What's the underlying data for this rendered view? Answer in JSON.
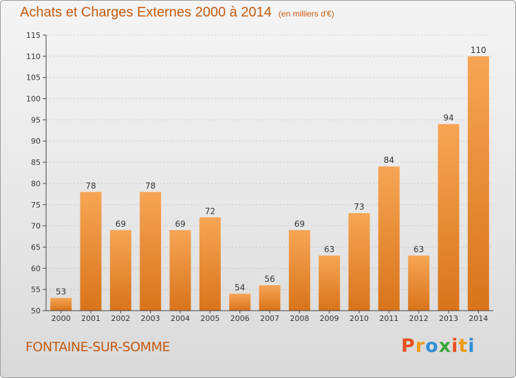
{
  "title": "Achats et Charges Externes 2000 à 2014",
  "subtitle": "(en milliers d'€)",
  "place": "FONTAINE-SUR-SOMME",
  "brand": {
    "text": "Proxiti",
    "letters": [
      "P",
      "r",
      "o",
      "x",
      "i",
      "t",
      "i"
    ],
    "colors": [
      "#e8501e",
      "#f09a12",
      "#2f8fd4",
      "#3aa53a",
      "#e8501e",
      "#f09a12",
      "#2f8fd4"
    ]
  },
  "colors": {
    "bar_light": "#f7a555",
    "bar_dark": "#d8741a",
    "title": "#c45a10",
    "grid": "#b8b8b8"
  },
  "chart_data": {
    "type": "bar",
    "title": "Achats et Charges Externes 2000 à 2014",
    "subtitle": "(en milliers d'€)",
    "categories": [
      "2000",
      "2001",
      "2002",
      "2003",
      "2004",
      "2005",
      "2006",
      "2007",
      "2008",
      "2009",
      "2010",
      "2011",
      "2012",
      "2013",
      "2014"
    ],
    "values": [
      53,
      78,
      69,
      78,
      69,
      72,
      54,
      56,
      69,
      63,
      73,
      84,
      63,
      94,
      110
    ],
    "ylim": [
      50,
      115
    ],
    "yticks": [
      50,
      55,
      60,
      65,
      70,
      75,
      80,
      85,
      90,
      95,
      100,
      105,
      110,
      115
    ],
    "grid": true,
    "xlabel": "",
    "ylabel": ""
  }
}
